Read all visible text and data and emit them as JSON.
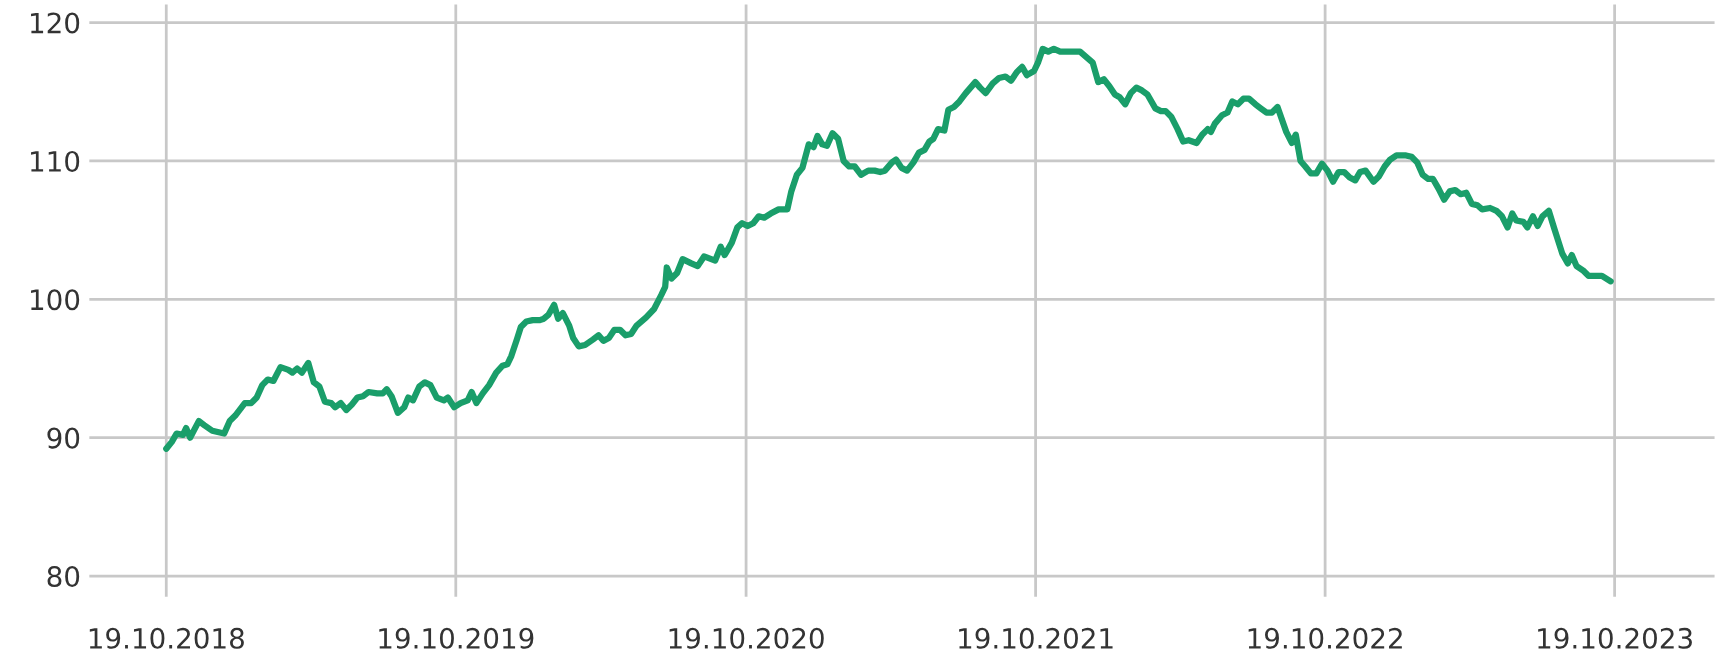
{
  "chart_data": {
    "type": "line",
    "grid": true,
    "marker": "none",
    "line_style": "solid",
    "xlim": [
      "2018-07-14",
      "2024-02-22"
    ],
    "ylim": [
      78.5,
      121.3
    ],
    "xticks": [
      {
        "value": "2018-10-19",
        "label": "19.10.2018"
      },
      {
        "value": "2019-10-19",
        "label": "19.10.2019"
      },
      {
        "value": "2020-10-19",
        "label": "19.10.2020"
      },
      {
        "value": "2021-10-19",
        "label": "19.10.2021"
      },
      {
        "value": "2022-10-19",
        "label": "19.10.2022"
      },
      {
        "value": "2023-10-19",
        "label": "19.10.2023"
      }
    ],
    "yticks": [
      80,
      90,
      100,
      110,
      120
    ],
    "series": [
      {
        "color": "#1a9e6a",
        "x": [
          "2018-10-19",
          "2018-10-26",
          "2018-11-01",
          "2018-11-09",
          "2018-11-13",
          "2018-11-18",
          "2018-11-29",
          "2018-12-06",
          "2018-12-16",
          "2018-12-31",
          "2019-01-07",
          "2019-01-14",
          "2019-01-26",
          "2019-02-03",
          "2019-02-10",
          "2019-02-17",
          "2019-02-24",
          "2019-03-03",
          "2019-03-12",
          "2019-03-22",
          "2019-03-27",
          "2019-04-02",
          "2019-04-08",
          "2019-04-16",
          "2019-04-23",
          "2019-04-30",
          "2019-05-07",
          "2019-05-15",
          "2019-05-20",
          "2019-05-27",
          "2019-06-03",
          "2019-06-10",
          "2019-06-17",
          "2019-06-24",
          "2019-07-01",
          "2019-07-12",
          "2019-07-19",
          "2019-07-24",
          "2019-07-30",
          "2019-08-07",
          "2019-08-15",
          "2019-08-20",
          "2019-08-26",
          "2019-09-03",
          "2019-09-10",
          "2019-09-17",
          "2019-09-25",
          "2019-10-04",
          "2019-10-09",
          "2019-10-17",
          "2019-10-25",
          "2019-11-03",
          "2019-11-08",
          "2019-11-14",
          "2019-11-22",
          "2019-11-30",
          "2019-12-09",
          "2019-12-17",
          "2019-12-23",
          "2019-12-28",
          "2020-01-04",
          "2020-01-09",
          "2020-01-16",
          "2020-01-24",
          "2020-02-02",
          "2020-02-07",
          "2020-02-13",
          "2020-02-20",
          "2020-02-25",
          "2020-03-02",
          "2020-03-10",
          "2020-03-15",
          "2020-03-22",
          "2020-03-30",
          "2020-04-09",
          "2020-04-16",
          "2020-04-22",
          "2020-04-29",
          "2020-05-06",
          "2020-05-13",
          "2020-05-20",
          "2020-05-27",
          "2020-06-03",
          "2020-06-15",
          "2020-06-25",
          "2020-07-04",
          "2020-07-09",
          "2020-07-11",
          "2020-07-17",
          "2020-07-24",
          "2020-07-31",
          "2020-08-11",
          "2020-08-19",
          "2020-08-27",
          "2020-09-10",
          "2020-09-17",
          "2020-09-22",
          "2020-10-01",
          "2020-10-08",
          "2020-10-14",
          "2020-10-21",
          "2020-10-28",
          "2020-11-04",
          "2020-11-11",
          "2020-11-19",
          "2020-11-29",
          "2020-12-10",
          "2020-12-15",
          "2020-12-22",
          "2020-12-29",
          "2021-01-06",
          "2021-01-12",
          "2021-01-17",
          "2021-01-23",
          "2021-01-29",
          "2021-02-05",
          "2021-02-12",
          "2021-02-19",
          "2021-02-26",
          "2021-03-05",
          "2021-03-13",
          "2021-03-22",
          "2021-03-30",
          "2021-04-06",
          "2021-04-12",
          "2021-04-21",
          "2021-04-26",
          "2021-05-03",
          "2021-05-10",
          "2021-05-18",
          "2021-05-25",
          "2021-06-01",
          "2021-06-07",
          "2021-06-12",
          "2021-06-18",
          "2021-06-26",
          "2021-07-01",
          "2021-07-08",
          "2021-07-15",
          "2021-07-23",
          "2021-07-29",
          "2021-08-04",
          "2021-08-10",
          "2021-08-17",
          "2021-08-26",
          "2021-09-03",
          "2021-09-11",
          "2021-09-18",
          "2021-09-25",
          "2021-10-02",
          "2021-10-08",
          "2021-10-17",
          "2021-10-22",
          "2021-10-28",
          "2021-11-04",
          "2021-11-11",
          "2021-11-19",
          "2021-11-27",
          "2021-12-05",
          "2021-12-14",
          "2021-12-22",
          "2021-12-30",
          "2022-01-06",
          "2022-01-13",
          "2022-01-20",
          "2022-01-27",
          "2022-02-02",
          "2022-02-09",
          "2022-02-16",
          "2022-02-23",
          "2022-03-02",
          "2022-03-09",
          "2022-03-19",
          "2022-03-26",
          "2022-04-01",
          "2022-04-08",
          "2022-04-16",
          "2022-04-23",
          "2022-04-30",
          "2022-05-10",
          "2022-05-17",
          "2022-05-24",
          "2022-05-28",
          "2022-06-02",
          "2022-06-11",
          "2022-06-18",
          "2022-06-24",
          "2022-07-01",
          "2022-07-08",
          "2022-07-15",
          "2022-07-23",
          "2022-07-30",
          "2022-08-06",
          "2022-08-13",
          "2022-08-20",
          "2022-08-31",
          "2022-09-07",
          "2022-09-12",
          "2022-09-18",
          "2022-09-24",
          "2022-10-01",
          "2022-10-08",
          "2022-10-15",
          "2022-10-22",
          "2022-10-29",
          "2022-11-05",
          "2022-11-12",
          "2022-11-19",
          "2022-11-26",
          "2022-12-02",
          "2022-12-09",
          "2022-12-19",
          "2022-12-26",
          "2023-01-02",
          "2023-01-09",
          "2023-01-17",
          "2023-01-29",
          "2023-02-05",
          "2023-02-12",
          "2023-02-19",
          "2023-02-26",
          "2023-03-04",
          "2023-03-11",
          "2023-03-18",
          "2023-03-25",
          "2023-04-01",
          "2023-04-08",
          "2023-04-15",
          "2023-04-22",
          "2023-04-29",
          "2023-05-05",
          "2023-05-15",
          "2023-05-23",
          "2023-05-30",
          "2023-06-06",
          "2023-06-12",
          "2023-06-17",
          "2023-06-26",
          "2023-07-01",
          "2023-07-08",
          "2023-07-14",
          "2023-07-20",
          "2023-07-28",
          "2023-08-04",
          "2023-08-14",
          "2023-08-21",
          "2023-08-26",
          "2023-09-01",
          "2023-09-09",
          "2023-09-16",
          "2023-09-24",
          "2023-10-03",
          "2023-10-14"
        ],
        "values": [
          89.2,
          89.7,
          90.3,
          90.2,
          90.7,
          90.0,
          91.2,
          90.9,
          90.5,
          90.3,
          91.2,
          91.6,
          92.5,
          92.5,
          92.9,
          93.8,
          94.2,
          94.1,
          95.1,
          94.9,
          94.7,
          95.0,
          94.7,
          95.4,
          94.0,
          93.7,
          92.6,
          92.5,
          92.2,
          92.5,
          92.0,
          92.4,
          92.9,
          93.0,
          93.3,
          93.2,
          93.2,
          93.5,
          93.0,
          91.8,
          92.2,
          92.9,
          92.7,
          93.7,
          94.0,
          93.8,
          92.9,
          92.7,
          92.9,
          92.2,
          92.5,
          92.7,
          93.3,
          92.5,
          93.2,
          93.8,
          94.7,
          95.2,
          95.3,
          95.9,
          97.1,
          98.0,
          98.4,
          98.5,
          98.5,
          98.6,
          98.9,
          99.6,
          98.6,
          99.0,
          98.1,
          97.2,
          96.6,
          96.7,
          97.1,
          97.4,
          97.0,
          97.2,
          97.8,
          97.8,
          97.4,
          97.5,
          98.1,
          98.7,
          99.3,
          100.3,
          100.9,
          102.3,
          101.5,
          101.9,
          102.9,
          102.6,
          102.4,
          103.1,
          102.8,
          103.8,
          103.2,
          104.1,
          105.2,
          105.5,
          105.3,
          105.5,
          106.0,
          105.9,
          106.2,
          106.5,
          106.5,
          107.8,
          109.0,
          109.5,
          111.2,
          111.0,
          111.8,
          111.2,
          111.1,
          112.0,
          111.6,
          110.0,
          109.6,
          109.6,
          109.0,
          109.3,
          109.3,
          109.2,
          109.3,
          109.9,
          110.1,
          109.5,
          109.3,
          109.9,
          110.6,
          110.8,
          111.4,
          111.6,
          112.3,
          112.2,
          113.7,
          113.9,
          114.3,
          114.9,
          115.3,
          115.7,
          115.3,
          114.9,
          115.6,
          116.0,
          116.1,
          115.8,
          116.4,
          116.8,
          116.2,
          116.5,
          117.1,
          118.1,
          117.9,
          118.1,
          117.9,
          117.9,
          117.9,
          117.9,
          117.5,
          117.1,
          115.7,
          115.9,
          115.4,
          114.8,
          114.6,
          114.1,
          114.9,
          115.3,
          115.1,
          114.8,
          113.8,
          113.6,
          113.6,
          113.2,
          112.3,
          111.4,
          111.5,
          111.3,
          111.9,
          112.3,
          112.1,
          112.7,
          113.3,
          113.5,
          114.3,
          114.1,
          114.5,
          114.5,
          114.1,
          113.8,
          113.5,
          113.5,
          113.9,
          112.1,
          111.3,
          111.9,
          110.0,
          109.6,
          109.1,
          109.1,
          109.8,
          109.3,
          108.5,
          109.2,
          109.2,
          108.8,
          108.6,
          109.2,
          109.3,
          108.5,
          108.9,
          109.6,
          110.1,
          110.4,
          110.4,
          110.3,
          109.9,
          109.0,
          108.7,
          108.7,
          108.0,
          107.2,
          107.8,
          107.9,
          107.6,
          107.7,
          106.9,
          106.8,
          106.5,
          106.6,
          106.4,
          106.0,
          105.2,
          106.2,
          105.7,
          105.6,
          105.2,
          106.0,
          105.3,
          106.0,
          106.4,
          105.1,
          103.3,
          102.6,
          103.2,
          102.4,
          102.1,
          101.7,
          101.7,
          101.7,
          101.3
        ]
      }
    ]
  }
}
